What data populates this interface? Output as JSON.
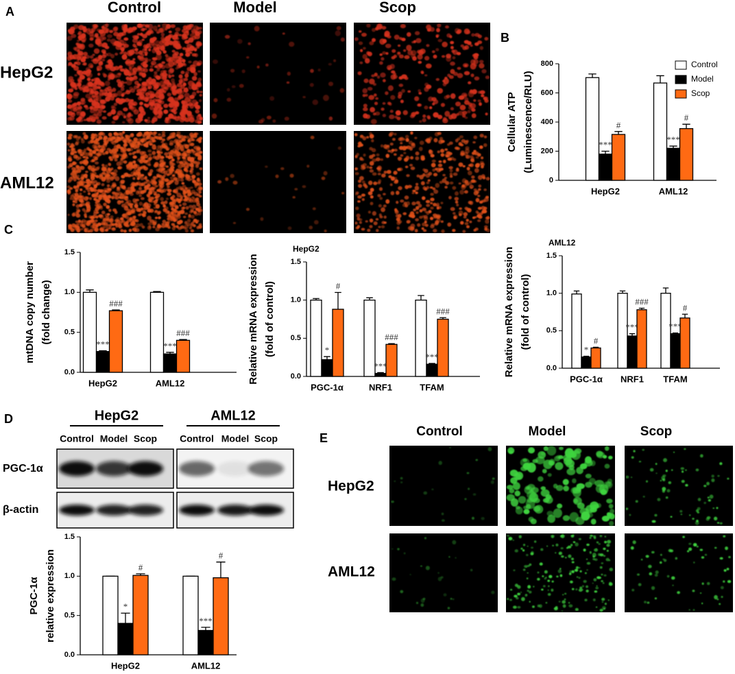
{
  "panel_labels": [
    "A",
    "B",
    "C",
    "D",
    "E"
  ],
  "panel_a": {
    "columns": [
      "Control",
      "Model",
      "Scop"
    ],
    "rows": [
      "HepG2",
      "AML12"
    ]
  },
  "panel_d": {
    "groups": [
      {
        "name": "HepG2",
        "lanes": [
          "Control",
          "Model",
          "Scop"
        ]
      },
      {
        "name": "AML12",
        "lanes": [
          "Control",
          "Model",
          "Scop"
        ]
      }
    ],
    "bands": [
      "PGC-1α",
      "β-actin"
    ]
  },
  "panel_e": {
    "columns": [
      "Control",
      "Model",
      "Scop"
    ],
    "rows": [
      "HepG2",
      "AML12"
    ]
  },
  "chart_data": [
    {
      "type": "bar",
      "ylabel": [
        "Cellular ATP",
        "(Luminescence/RLU)"
      ],
      "categories": [
        "HepG2",
        "AML12"
      ],
      "ylim": [
        0,
        800
      ],
      "yticks": [
        0,
        200,
        400,
        600,
        800
      ],
      "legend": "upper right",
      "series": [
        {
          "name": "Control",
          "color": "#ffffff",
          "values": [
            705,
            668
          ],
          "errors": [
            25,
            50
          ]
        },
        {
          "name": "Model",
          "color": "#000000",
          "values": [
            180,
            220
          ],
          "errors": [
            20,
            15
          ],
          "annotations": [
            "***",
            "***"
          ]
        },
        {
          "name": "Scop",
          "color": "#ff6a13",
          "values": [
            315,
            355
          ],
          "errors": [
            20,
            30
          ],
          "annotations": [
            "#",
            "#"
          ]
        }
      ]
    },
    {
      "type": "bar",
      "ylabel": [
        "mtDNA copy number",
        "(fold change)"
      ],
      "categories": [
        "HepG2",
        "AML12"
      ],
      "ylim": [
        0,
        1.5
      ],
      "yticks": [
        {
          "value": 0,
          "label": "0.0"
        },
        0.5,
        {
          "value": 1,
          "label": "1.0"
        },
        1.5
      ],
      "series": [
        {
          "color": "#ffffff",
          "values": [
            1.0,
            1.0
          ],
          "errors": [
            0.03,
            0.01
          ]
        },
        {
          "color": "#000000",
          "values": [
            0.26,
            0.23
          ],
          "errors": [
            0.01,
            0.02
          ],
          "annotations": [
            "***",
            "***"
          ]
        },
        {
          "color": "#ff6a13",
          "values": [
            0.77,
            0.4
          ],
          "errors": [
            0.01,
            0.01
          ],
          "annotations": [
            "###",
            "###"
          ]
        }
      ]
    },
    {
      "type": "bar",
      "title": "HepG2",
      "ylabel": [
        "Relative mRNA expression",
        "(fold of control)"
      ],
      "categories": [
        "PGC-1α",
        "NRF1",
        "TFAM"
      ],
      "ylim": [
        0,
        1.5
      ],
      "yticks": [
        {
          "value": 0,
          "label": "0.0"
        },
        0.5,
        {
          "value": 1,
          "label": "1.0"
        },
        1.5
      ],
      "series": [
        {
          "color": "#ffffff",
          "values": [
            1.0,
            1.0,
            1.0
          ],
          "errors": [
            0.02,
            0.03,
            0.06
          ]
        },
        {
          "color": "#000000",
          "values": [
            0.22,
            0.04,
            0.16
          ],
          "errors": [
            0.04,
            0.01,
            0.01
          ],
          "annotations": [
            "*",
            "***",
            "***"
          ]
        },
        {
          "color": "#ff6a13",
          "values": [
            0.88,
            0.42,
            0.75
          ],
          "errors": [
            0.22,
            0.01,
            0.02
          ],
          "annotations": [
            "#",
            "###",
            "###"
          ]
        }
      ]
    },
    {
      "type": "bar",
      "title": "AML12",
      "ylabel": [
        "Relative mRNA expression",
        "(fold of control)"
      ],
      "categories": [
        "PGC-1α",
        "NRF1",
        "TFAM"
      ],
      "ylim": [
        0,
        1.5
      ],
      "yticks": [
        {
          "value": 0,
          "label": "0.0"
        },
        0.5,
        {
          "value": 1,
          "label": "1.0"
        },
        1.5
      ],
      "series": [
        {
          "color": "#ffffff",
          "values": [
            0.99,
            1.0,
            1.0
          ],
          "errors": [
            0.04,
            0.03,
            0.07
          ]
        },
        {
          "color": "#000000",
          "values": [
            0.15,
            0.43,
            0.46
          ],
          "errors": [
            0.01,
            0.03,
            0.01
          ],
          "annotations": [
            "*",
            "***",
            "***"
          ]
        },
        {
          "color": "#ff6a13",
          "values": [
            0.27,
            0.78,
            0.67
          ],
          "errors": [
            0.01,
            0.02,
            0.05
          ],
          "annotations": [
            "#",
            "###",
            "#"
          ]
        }
      ]
    },
    {
      "type": "bar",
      "ylabel": [
        "PGC-1α",
        "relative expression"
      ],
      "categories": [
        "HepG2",
        "AML12"
      ],
      "ylim": [
        0,
        1.5
      ],
      "yticks": [
        {
          "value": 0,
          "label": "0.0"
        },
        0.5,
        {
          "value": 1,
          "label": "1.0"
        },
        1.5
      ],
      "series": [
        {
          "color": "#ffffff",
          "values": [
            1.0,
            1.0
          ],
          "errors": [
            0,
            0
          ]
        },
        {
          "color": "#000000",
          "values": [
            0.4,
            0.31
          ],
          "errors": [
            0.13,
            0.04
          ],
          "annotations": [
            "*",
            "***"
          ]
        },
        {
          "color": "#ff6a13",
          "values": [
            1.01,
            0.98
          ],
          "errors": [
            0.02,
            0.2
          ],
          "annotations": [
            "#",
            "#"
          ]
        }
      ]
    }
  ]
}
